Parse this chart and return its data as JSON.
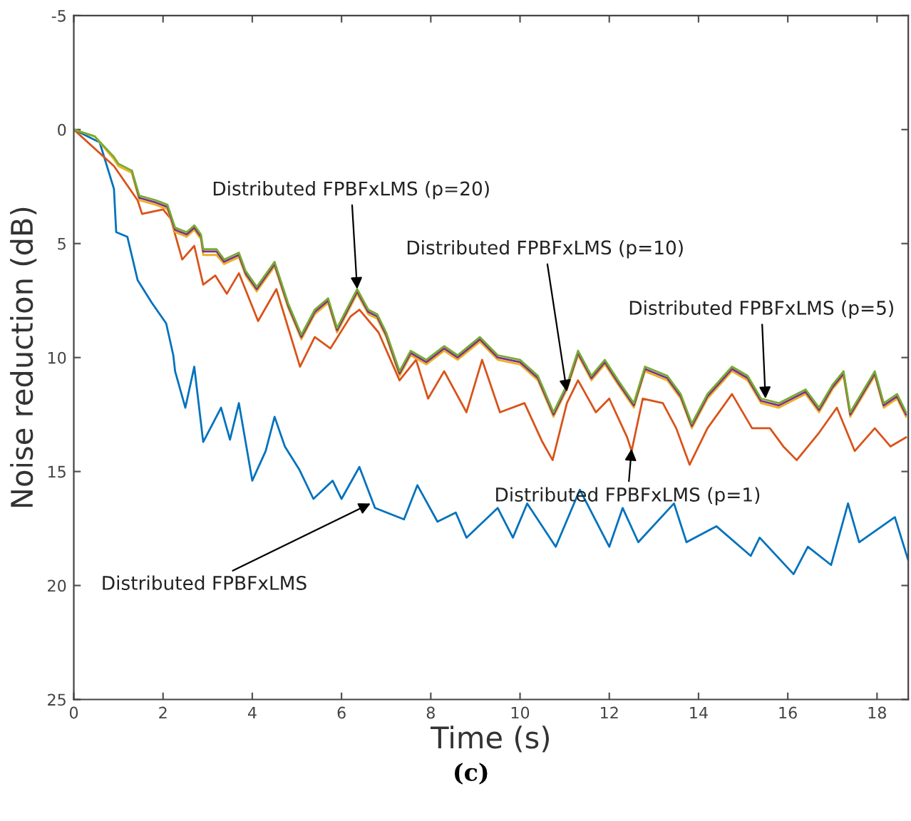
{
  "chart_data": {
    "type": "line",
    "xlabel": "Time (s)",
    "ylabel": "Noise reduction (dB)",
    "xlim": [
      0,
      18.7
    ],
    "ylim": [
      25,
      -5
    ],
    "xticks": [
      0,
      2,
      4,
      6,
      8,
      10,
      12,
      14,
      16,
      18
    ],
    "yticks": [
      {
        "value": -5,
        "label": "-5"
      },
      0,
      5,
      10,
      15,
      20,
      25
    ],
    "grid": false,
    "legend": false,
    "line_style": "solid",
    "marker": "none",
    "series": [
      {
        "color": "#0072bd",
        "x": [
          0,
          0.58,
          0.9,
          0.95,
          1.2,
          1.43,
          1.75,
          2.07,
          2.23,
          2.27,
          2.5,
          2.7,
          2.9,
          3.3,
          3.5,
          3.7,
          4.0,
          4.3,
          4.5,
          4.73,
          5.05,
          5.37,
          5.8,
          6.0,
          6.4,
          6.75,
          7.4,
          7.7,
          8.15,
          8.56,
          8.8,
          9.5,
          9.84,
          10.16,
          10.8,
          11.34,
          12.0,
          12.3,
          12.65,
          13.45,
          13.73,
          14.4,
          15.17,
          15.37,
          16.13,
          16.45,
          16.97,
          17.35,
          17.6,
          18.4,
          18.7
        ],
        "values": [
          0,
          0.56,
          2.6,
          4.5,
          4.7,
          6.6,
          7.6,
          8.5,
          9.9,
          10.6,
          12.2,
          10.4,
          13.7,
          12.2,
          13.6,
          12.0,
          15.4,
          14.1,
          12.6,
          13.9,
          14.9,
          16.2,
          15.4,
          16.2,
          14.8,
          16.6,
          17.1,
          15.6,
          17.2,
          16.8,
          17.9,
          16.6,
          17.9,
          16.4,
          18.3,
          15.8,
          18.3,
          16.6,
          18.1,
          16.4,
          18.1,
          17.4,
          18.7,
          17.9,
          19.5,
          18.3,
          19.1,
          16.4,
          18.1,
          17.0,
          18.9
        ]
      },
      {
        "color": "#d95319",
        "x": [
          0,
          0.9,
          1.43,
          1.53,
          2.0,
          2.17,
          2.43,
          2.7,
          2.9,
          3.17,
          3.43,
          3.7,
          4.13,
          4.54,
          5.07,
          5.4,
          5.75,
          6.2,
          6.4,
          6.83,
          7.3,
          7.67,
          7.94,
          8.3,
          8.8,
          9.15,
          9.55,
          10.1,
          10.5,
          10.73,
          11.05,
          11.3,
          11.7,
          12.0,
          12.4,
          12.5,
          12.75,
          13.2,
          13.5,
          13.8,
          14.2,
          14.75,
          15.2,
          15.6,
          15.9,
          16.2,
          16.7,
          17.1,
          17.5,
          17.95,
          18.3,
          18.65
        ],
        "values": [
          0,
          1.6,
          3.1,
          3.7,
          3.5,
          3.9,
          5.7,
          5.1,
          6.8,
          6.4,
          7.2,
          6.3,
          8.4,
          7.0,
          10.4,
          9.1,
          9.6,
          8.2,
          7.9,
          8.9,
          11.0,
          10.1,
          11.8,
          10.6,
          12.4,
          10.1,
          12.4,
          12.0,
          13.7,
          14.5,
          12.0,
          11.0,
          12.4,
          11.8,
          13.5,
          14.1,
          11.8,
          12.0,
          13.1,
          14.7,
          13.1,
          11.6,
          13.1,
          13.1,
          13.9,
          14.5,
          13.3,
          12.2,
          14.1,
          13.1,
          13.9,
          13.5
        ]
      },
      {
        "color": "#edb120",
        "x": [
          0,
          0.47,
          0.9,
          1.0,
          1.3,
          1.47,
          1.84,
          2.1,
          2.27,
          2.53,
          2.7,
          2.85,
          2.9,
          3.2,
          3.37,
          3.7,
          3.85,
          4.1,
          4.5,
          4.8,
          5.1,
          5.4,
          5.7,
          5.9,
          6.35,
          6.6,
          6.8,
          7.0,
          7.3,
          7.55,
          7.9,
          8.3,
          8.6,
          9.1,
          9.5,
          10.0,
          10.4,
          10.75,
          11.05,
          11.3,
          11.6,
          11.9,
          12.2,
          12.55,
          12.8,
          13.3,
          13.6,
          13.85,
          14.2,
          14.75,
          15.1,
          15.4,
          15.8,
          16.4,
          16.7,
          17.0,
          17.25,
          17.4,
          17.95,
          18.15,
          18.45,
          18.65
        ],
        "values": [
          0,
          0.3,
          1.3,
          1.6,
          1.9,
          3.1,
          3.3,
          3.5,
          4.5,
          4.7,
          4.4,
          4.8,
          5.5,
          5.5,
          5.9,
          5.6,
          6.4,
          7.1,
          6.0,
          7.8,
          9.2,
          8.1,
          7.6,
          8.9,
          7.2,
          8.1,
          8.3,
          9.1,
          10.8,
          9.9,
          10.3,
          9.7,
          10.1,
          9.3,
          10.1,
          10.3,
          11.0,
          12.6,
          11.4,
          9.9,
          11.0,
          10.3,
          11.2,
          12.2,
          10.6,
          11.0,
          11.8,
          13.1,
          11.8,
          10.6,
          11.0,
          12.0,
          12.2,
          11.6,
          12.4,
          11.4,
          10.8,
          12.6,
          10.8,
          12.2,
          11.8,
          12.6
        ]
      },
      {
        "color": "#7e2f8e",
        "x": [
          1.3,
          1.47,
          1.84,
          2.1,
          2.27,
          2.53,
          2.7,
          2.85,
          2.9,
          3.2,
          3.37,
          3.7,
          3.85,
          4.1,
          4.5,
          4.8,
          5.1,
          5.4,
          5.7,
          5.9,
          6.35,
          6.6,
          6.8,
          7.0,
          7.3,
          7.55,
          7.9,
          8.3,
          8.6,
          9.1,
          9.5,
          10.0,
          10.4,
          10.75,
          11.05,
          11.3,
          11.6,
          11.9,
          12.2,
          12.55,
          12.8,
          13.3,
          13.6,
          13.85,
          14.2,
          14.75,
          15.1,
          15.4,
          15.8,
          16.4,
          16.7,
          17.0,
          17.25,
          17.4,
          17.95,
          18.15,
          18.45,
          18.65
        ],
        "values": [
          1.8,
          3.0,
          3.2,
          3.4,
          4.4,
          4.6,
          4.3,
          4.7,
          5.35,
          5.35,
          5.8,
          5.5,
          6.3,
          7.0,
          5.9,
          7.7,
          9.1,
          8.0,
          7.5,
          8.8,
          7.1,
          8.0,
          8.2,
          9.0,
          10.7,
          9.8,
          10.2,
          9.6,
          10.0,
          9.2,
          10.0,
          10.2,
          10.9,
          12.5,
          11.3,
          9.8,
          10.9,
          10.2,
          11.1,
          12.1,
          10.5,
          10.9,
          11.7,
          13.0,
          11.7,
          10.5,
          10.9,
          11.9,
          12.1,
          11.5,
          12.3,
          11.3,
          10.7,
          12.5,
          10.7,
          12.1,
          11.7,
          12.5
        ]
      },
      {
        "color": "#77ac30",
        "x": [
          0,
          0.47,
          0.9,
          1.0,
          1.3,
          1.47,
          1.84,
          2.1,
          2.27,
          2.53,
          2.7,
          2.85,
          2.9,
          3.2,
          3.37,
          3.7,
          3.85,
          4.1,
          4.5,
          4.8,
          5.1,
          5.4,
          5.7,
          5.9,
          6.35,
          6.6,
          6.8,
          7.0,
          7.3,
          7.55,
          7.9,
          8.3,
          8.6,
          9.1,
          9.5,
          10.0,
          10.4,
          10.75,
          11.05,
          11.3,
          11.6,
          11.9,
          12.2,
          12.55,
          12.8,
          13.3,
          13.6,
          13.85,
          14.2,
          14.75,
          15.1,
          15.4,
          15.8,
          16.4,
          16.7,
          17.0,
          17.25,
          17.4,
          17.95,
          18.15,
          18.45,
          18.65
        ],
        "values": [
          0,
          0.3,
          1.2,
          1.5,
          1.8,
          2.9,
          3.1,
          3.3,
          4.3,
          4.5,
          4.2,
          4.6,
          5.25,
          5.25,
          5.7,
          5.4,
          6.2,
          6.9,
          5.8,
          7.6,
          9.0,
          7.9,
          7.4,
          8.7,
          7.0,
          7.9,
          8.1,
          8.9,
          10.6,
          9.7,
          10.1,
          9.5,
          9.9,
          9.1,
          9.9,
          10.1,
          10.8,
          12.4,
          11.2,
          9.7,
          10.8,
          10.1,
          11.0,
          12.0,
          10.4,
          10.8,
          11.6,
          12.9,
          11.6,
          10.4,
          10.8,
          11.8,
          12.0,
          11.4,
          12.2,
          11.2,
          10.6,
          12.4,
          10.6,
          12.0,
          11.6,
          12.4
        ]
      }
    ],
    "annotations": [
      {
        "text": "Distributed FPBFxLMS (p=20)",
        "x": 6.35,
        "y": 7.0
      },
      {
        "text": "Distributed FPBFxLMS (p=10)",
        "x": 11.05,
        "y": 11.5
      },
      {
        "text": "Distributed FPBFxLMS (p=5)",
        "x": 15.5,
        "y": 11.8
      },
      {
        "text": "Distributed FPBFxLMS (p=1)",
        "x": 12.5,
        "y": 14.0
      },
      {
        "text": "Distributed FPBFxLMS",
        "x": 6.65,
        "y": 16.4
      },
      "(c)"
    ]
  }
}
